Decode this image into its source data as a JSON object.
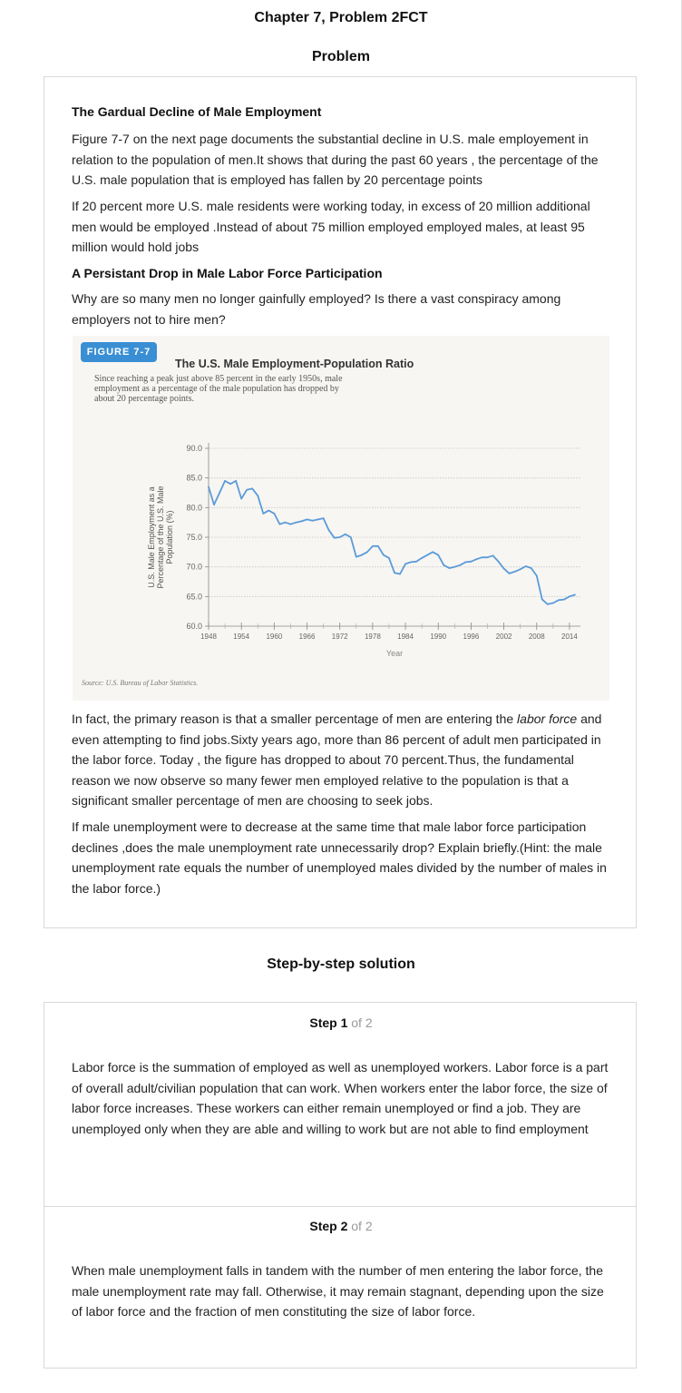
{
  "page": {
    "title": "Chapter 7, Problem 2FCT",
    "problem_heading": "Problem",
    "solution_heading": "Step-by-step solution"
  },
  "problem": {
    "heading1": "The Gardual Decline of Male Employment",
    "para1": "Figure 7-7 on the next page documents the substantial decline in U.S. male employement in relation to the population of men.It shows that during the past 60 years , the percentage of the U.S. male population that is employed has fallen by 20 percentage points",
    "para2": "If 20 percent more U.S. male residents were working today, in excess of 20 million additional men would be employed .Instead of about 75 million employed employed males, at least 95 million would hold jobs",
    "heading2": "A Persistant Drop in Male Labor Force Participation",
    "para3": "Why are so many men no longer gainfully employed? Is there a vast conspiracy among employers not to hire men?",
    "para4_a": "In fact, the primary reason is that a smaller percentage of men are entering the ",
    "para4_em": "labor force",
    "para4_b": " and even attempting to find jobs.Sixty years ago, more than 86 percent of adult men participated in the labor force. Today , the figure has dropped to about 70 percent.Thus, the fundamental reason we now observe so many fewer men employed relative to the population is that a significant smaller percentage of men are choosing to seek jobs.",
    "para5": "If male unemployment were to decrease at the same time that male labor force participation declines ,does the male unemployment rate unnecessarily drop? Explain briefly.(Hint: the male unemployment rate equals the number of unemployed males divided by the number of males in the labor force.)"
  },
  "figure": {
    "badge": "FIGURE 7-7",
    "title": "The U.S. Male Employment-Population Ratio",
    "caption": "Since reaching a peak just above 85 percent in the early 1950s, male employment as a percentage of the male population has dropped by about 20 percentage points.",
    "source": "Source: U.S. Bureau of Labor Statistics."
  },
  "chart_data": {
    "type": "line",
    "ylabel_line1": "U.S. Male Employment as a",
    "ylabel_line2": "Percentage of the U.S. Male",
    "ylabel_line3": "Population (%)",
    "xlabel": "Year",
    "yticks": [
      "60.0",
      "65.0",
      "70.0",
      "75.0",
      "80.0",
      "85.0",
      "90.0"
    ],
    "xticks": [
      "1948",
      "1954",
      "1960",
      "1966",
      "1972",
      "1978",
      "1984",
      "1990",
      "1996",
      "2002",
      "2008",
      "2014"
    ],
    "ylim": [
      60,
      90
    ],
    "xlim": [
      1948,
      2016
    ],
    "grid": true,
    "color": "#5b9bd8",
    "series": [
      {
        "x": [
          1948,
          1949,
          1950,
          1951,
          1952,
          1953,
          1954,
          1955,
          1956,
          1957,
          1958,
          1959,
          1960,
          1961,
          1962,
          1963,
          1964,
          1965,
          1966,
          1967,
          1968,
          1969,
          1970,
          1971,
          1972,
          1973,
          1974,
          1975,
          1976,
          1977,
          1978,
          1979,
          1980,
          1981,
          1982,
          1983,
          1984,
          1985,
          1986,
          1987,
          1988,
          1989,
          1990,
          1991,
          1992,
          1993,
          1994,
          1995,
          1996,
          1997,
          1998,
          1999,
          2000,
          2001,
          2002,
          2003,
          2004,
          2005,
          2006,
          2007,
          2008,
          2009,
          2010,
          2011,
          2012,
          2013,
          2014,
          2015
        ],
        "y": [
          83.5,
          80.5,
          82.5,
          84.5,
          84.0,
          84.5,
          81.5,
          83.0,
          83.2,
          82.0,
          79.0,
          79.5,
          79.0,
          77.2,
          77.5,
          77.2,
          77.5,
          77.7,
          78.0,
          77.8,
          78.0,
          78.2,
          76.2,
          74.9,
          75.0,
          75.5,
          75.0,
          71.7,
          72.0,
          72.5,
          73.5,
          73.5,
          72.0,
          71.5,
          69.0,
          68.8,
          70.5,
          70.8,
          70.9,
          71.5,
          72.0,
          72.5,
          72.0,
          70.3,
          69.8,
          70.0,
          70.3,
          70.8,
          70.9,
          71.3,
          71.6,
          71.6,
          71.9,
          70.9,
          69.7,
          68.9,
          69.2,
          69.6,
          70.1,
          69.8,
          68.5,
          64.5,
          63.7,
          63.9,
          64.4,
          64.5,
          65.0,
          65.3
        ]
      }
    ]
  },
  "steps": [
    {
      "label": "Step 1",
      "of": "of 2",
      "text": "Labor force is the summation of employed as well as unemployed workers. Labor force is a part of overall adult/civilian population that can work. When workers enter the labor force, the size of labor force increases. These workers can either remain unemployed or find a job. They are unemployed only when they are able and willing to work but are not able to find employment"
    },
    {
      "label": "Step 2",
      "of": "of 2",
      "text": "When male unemployment falls in tandem with the number of men entering the labor force, the male unemployment rate may fall. Otherwise, it may remain stagnant, depending upon the size of labor force and the fraction of men constituting the size of labor force."
    }
  ]
}
